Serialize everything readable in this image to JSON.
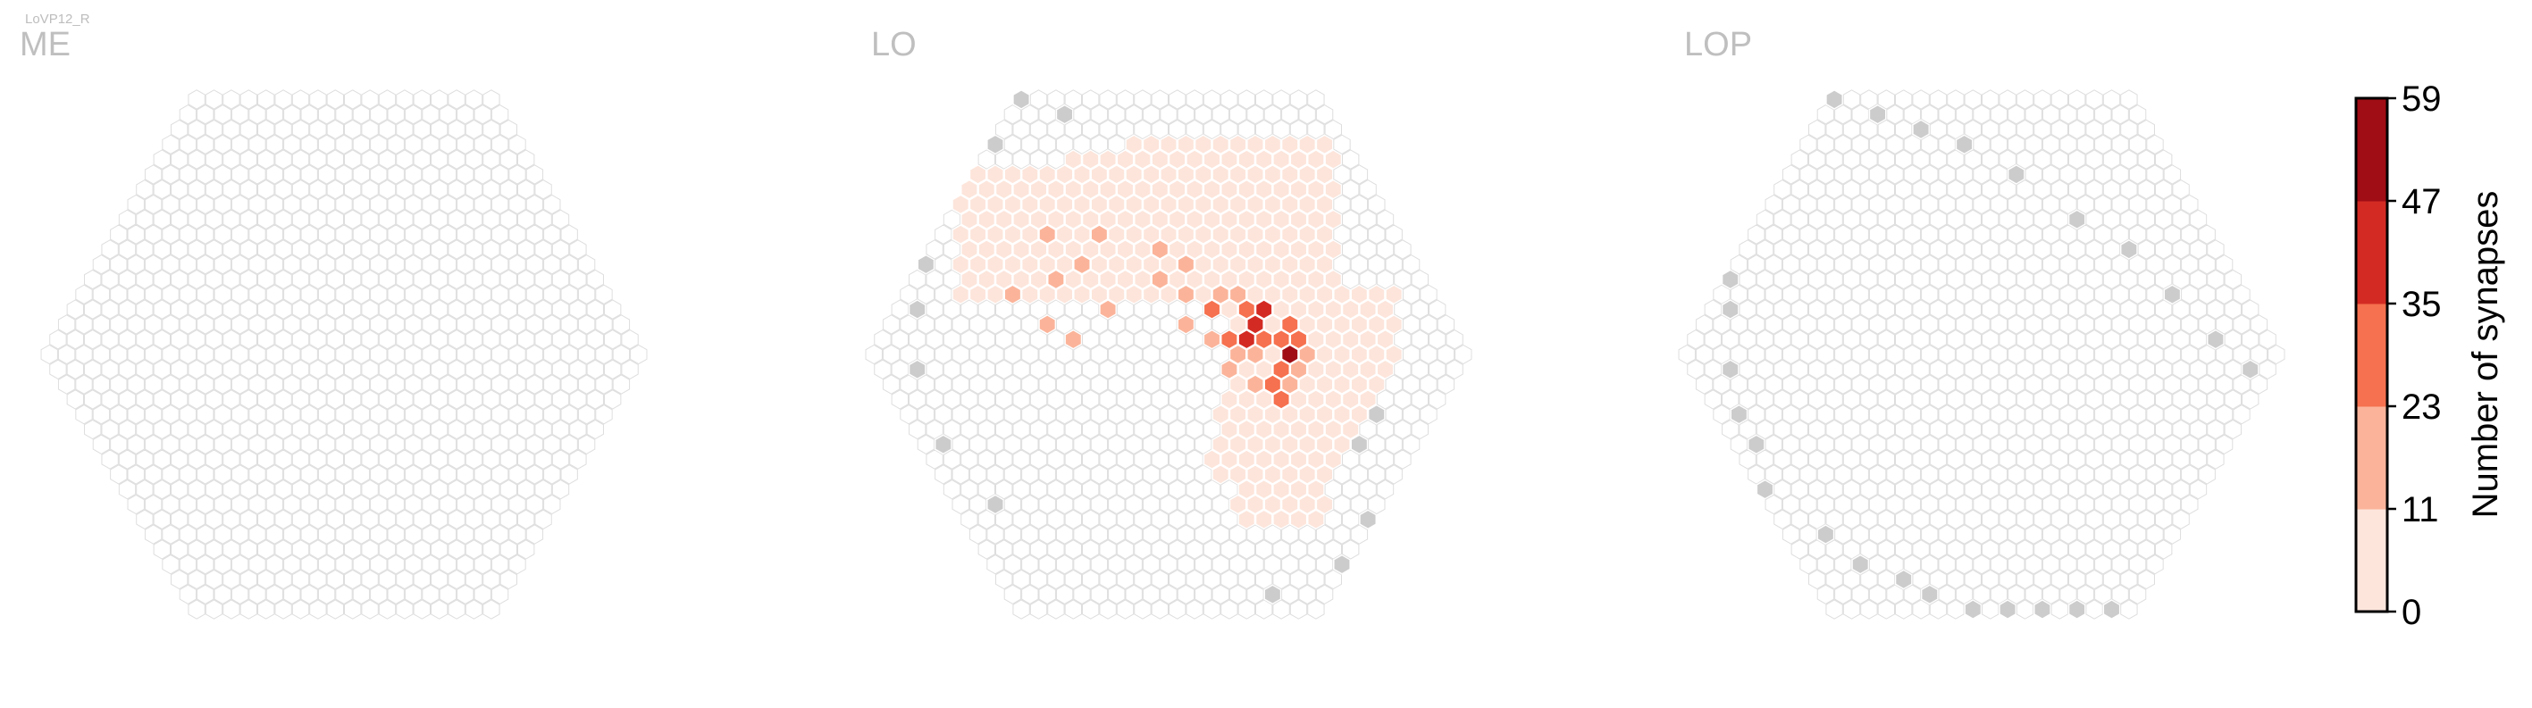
{
  "figure": {
    "cell_type_label": "LoVP12_R"
  },
  "chart_data": {
    "type": "heatmap",
    "description": "hexagonal column maps of synapse counts per optic-lobe column",
    "panels": [
      {
        "title": "ME",
        "radius": 17,
        "dense": [],
        "gray": []
      },
      {
        "title": "LO",
        "radius": 17,
        "dense": [
          [
            6,
            -2,
            45
          ],
          [
            5,
            -1,
            40
          ],
          [
            7,
            0,
            55
          ],
          [
            7,
            -3,
            38
          ],
          [
            6,
            -3,
            32
          ],
          [
            8,
            -1,
            30
          ],
          [
            4,
            -1,
            32
          ],
          [
            5,
            2,
            30
          ],
          [
            6,
            1,
            28
          ],
          [
            7,
            -1,
            33
          ],
          [
            8,
            -2,
            25
          ],
          [
            6,
            -1,
            24
          ],
          [
            5,
            0,
            20
          ],
          [
            4,
            -3,
            26
          ],
          [
            3,
            -4,
            18
          ],
          [
            5,
            -4,
            22
          ],
          [
            6,
            -4,
            20
          ],
          [
            4,
            0,
            19
          ],
          [
            3,
            -1,
            21
          ],
          [
            2,
            -5,
            16
          ],
          [
            4,
            -6,
            14
          ],
          [
            3,
            -7,
            12
          ],
          [
            6,
            2,
            18
          ],
          [
            4,
            2,
            15
          ],
          [
            7,
            1,
            16
          ],
          [
            8,
            0,
            14
          ],
          [
            5,
            3,
            26
          ],
          [
            3,
            1,
            13
          ],
          [
            2,
            -2,
            12
          ],
          [
            -2,
            -6,
            15
          ],
          [
            -4,
            -5,
            12
          ],
          [
            -5,
            -1,
            14
          ],
          [
            -6,
            -2,
            12
          ],
          [
            -2,
            -3,
            17
          ],
          [
            0,
            -8,
            15
          ],
          [
            -3,
            -8,
            17
          ],
          [
            -7,
            -4,
            14
          ]
        ],
        "gray": [
          [
            -11,
            -6
          ],
          [
            -13,
            -3
          ],
          [
            -15,
            1
          ],
          [
            -16,
            6
          ],
          [
            -15,
            10
          ],
          [
            0,
            -17
          ],
          [
            2,
            -16
          ],
          [
            -3,
            -14
          ],
          [
            -2,
            16
          ],
          [
            3,
            14
          ],
          [
            6,
            11
          ],
          [
            8,
            6
          ],
          [
            10,
            4
          ]
        ]
      },
      {
        "title": "LOP",
        "radius": 17,
        "dense": [],
        "gray": [
          [
            -15,
            1
          ],
          [
            -16,
            4
          ],
          [
            -16,
            6
          ],
          [
            -17,
            9
          ],
          [
            -15,
            12
          ],
          [
            -14,
            14
          ],
          [
            -13,
            -3
          ],
          [
            -12,
            -5
          ],
          [
            -11,
            -7
          ],
          [
            -10,
            -9
          ],
          [
            -9,
            -10
          ],
          [
            -8,
            -12
          ],
          [
            -6,
            -14
          ],
          [
            -4,
            -15
          ],
          [
            -2,
            -16
          ],
          [
            0,
            -17
          ],
          [
            2,
            -16
          ],
          [
            4,
            -15
          ],
          [
            6,
            -14
          ],
          [
            8,
            -12
          ],
          [
            10,
            -9
          ],
          [
            12,
            -7
          ],
          [
            13,
            -4
          ],
          [
            14,
            -1
          ],
          [
            15,
            1
          ],
          [
            16,
            2
          ],
          [
            16,
            4
          ],
          [
            15,
            7
          ],
          [
            14,
            9
          ],
          [
            13,
            10
          ],
          [
            -12,
            15
          ],
          [
            -11,
            16
          ],
          [
            -9,
            17
          ],
          [
            -7,
            17
          ],
          [
            -5,
            17
          ],
          [
            -3,
            17
          ],
          [
            -1,
            17
          ],
          [
            2,
            16
          ],
          [
            4,
            15
          ],
          [
            6,
            14
          ],
          [
            9,
            12
          ],
          [
            11,
            10
          ],
          [
            12,
            8
          ]
        ]
      }
    ],
    "colorbar": {
      "label": "Number of synapses",
      "min": 0,
      "max": 59,
      "ticks": [
        "0",
        "11",
        "23",
        "35",
        "47",
        "59"
      ],
      "colors": [
        "#fde5db",
        "#fbb49a",
        "#f6714f",
        "#d32b23",
        "#a00d14"
      ]
    },
    "colors": {
      "empty_fill": "#ffffff",
      "empty_stroke": "#dedede",
      "gray_fill": "#cccccc",
      "panel_title": "#bfbfbf"
    }
  }
}
